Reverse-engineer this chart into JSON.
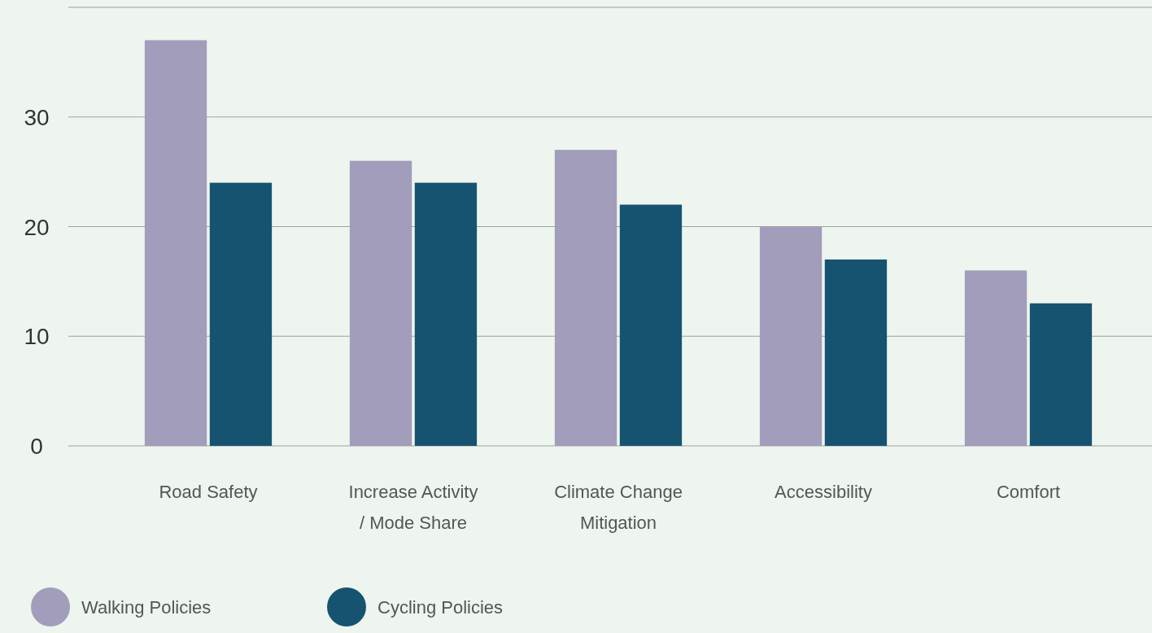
{
  "chart_data": {
    "type": "bar",
    "categories": [
      "Road Safety",
      "Increase Activity / Mode Share",
      "Climate Change Mitigation",
      "Accessibility",
      "Comfort"
    ],
    "series": [
      {
        "name": "Walking Policies",
        "color": "#a29dba",
        "values": [
          37,
          26,
          27,
          20,
          16
        ]
      },
      {
        "name": "Cycling Policies",
        "color": "#165370",
        "values": [
          24,
          24,
          22,
          17,
          13
        ]
      }
    ],
    "ylim": [
      0,
      40
    ],
    "yticks": [
      0,
      10,
      20,
      30,
      {
        "value": 40,
        "label": null
      }
    ],
    "grid": "y",
    "legend": "bottom left"
  }
}
